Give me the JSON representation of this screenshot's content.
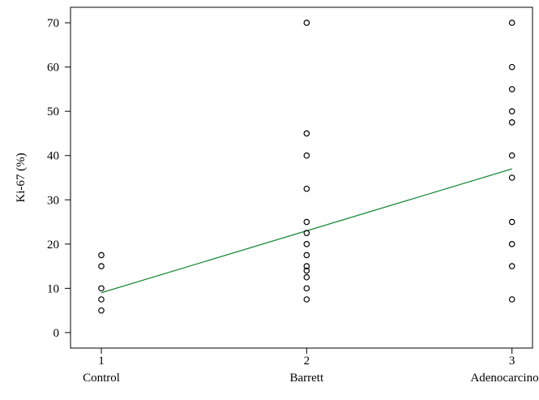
{
  "chart_data": {
    "type": "scatter",
    "title": "",
    "xlabel": "",
    "ylabel": "Ki-67 (%)",
    "x_ticks": [
      1,
      2,
      3
    ],
    "x_tick_labels": [
      "1",
      "2",
      "3"
    ],
    "categories": [
      "Control",
      "Barrett",
      "Adenocarcinoma"
    ],
    "y_ticks": [
      0,
      10,
      20,
      30,
      40,
      50,
      60,
      70
    ],
    "xlim": [
      0.85,
      3.1
    ],
    "ylim": [
      -3.5,
      73.5
    ],
    "grid": false,
    "series": [
      {
        "type": "scatter",
        "marker": "open-circle",
        "color": "#000000",
        "points": [
          {
            "x": 1,
            "y": 17.5
          },
          {
            "x": 1,
            "y": 15
          },
          {
            "x": 1,
            "y": 10
          },
          {
            "x": 1,
            "y": 7.5
          },
          {
            "x": 1,
            "y": 5
          },
          {
            "x": 2,
            "y": 70
          },
          {
            "x": 2,
            "y": 45
          },
          {
            "x": 2,
            "y": 40
          },
          {
            "x": 2,
            "y": 32.5
          },
          {
            "x": 2,
            "y": 25
          },
          {
            "x": 2,
            "y": 22.5
          },
          {
            "x": 2,
            "y": 20
          },
          {
            "x": 2,
            "y": 17.5
          },
          {
            "x": 2,
            "y": 15
          },
          {
            "x": 2,
            "y": 14
          },
          {
            "x": 2,
            "y": 12.5
          },
          {
            "x": 2,
            "y": 10
          },
          {
            "x": 2,
            "y": 7.5
          },
          {
            "x": 3,
            "y": 70
          },
          {
            "x": 3,
            "y": 60
          },
          {
            "x": 3,
            "y": 55
          },
          {
            "x": 3,
            "y": 50
          },
          {
            "x": 3,
            "y": 47.5
          },
          {
            "x": 3,
            "y": 40
          },
          {
            "x": 3,
            "y": 35
          },
          {
            "x": 3,
            "y": 25
          },
          {
            "x": 3,
            "y": 20
          },
          {
            "x": 3,
            "y": 15
          },
          {
            "x": 3,
            "y": 7.5
          }
        ]
      },
      {
        "type": "line",
        "color": "#1a8a3a",
        "points": [
          {
            "x": 1,
            "y": 9
          },
          {
            "x": 3,
            "y": 37
          }
        ]
      }
    ]
  }
}
